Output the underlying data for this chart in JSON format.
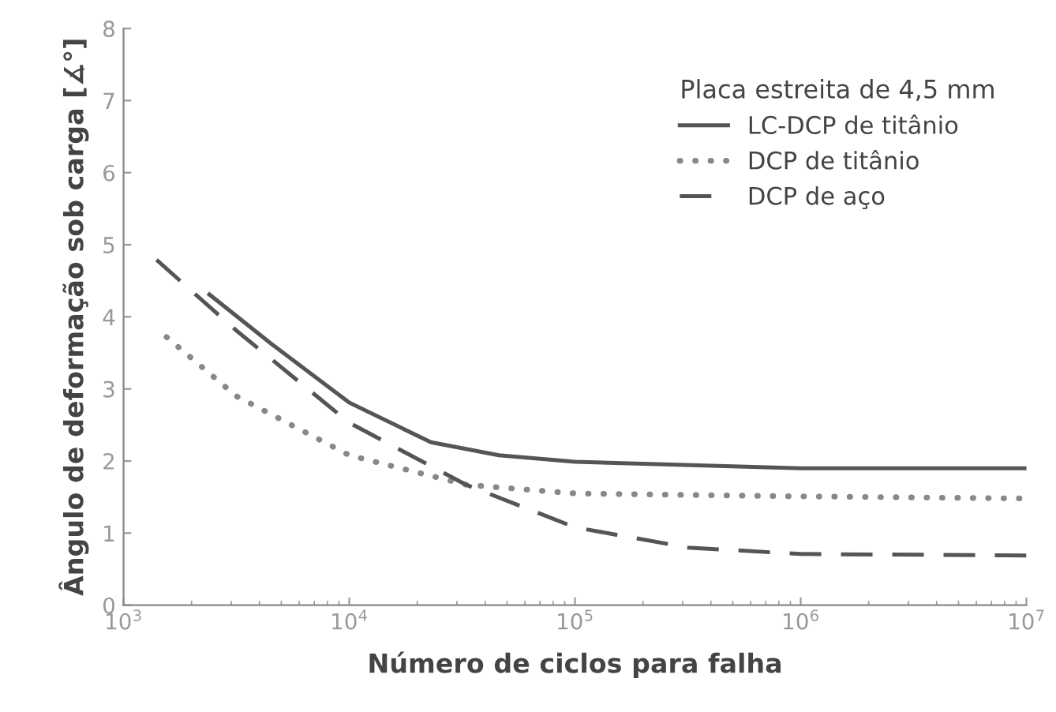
{
  "chart_data": {
    "type": "line",
    "xlabel": "Número de ciclos para falha",
    "ylabel": "Ângulo de deformação sob carga [∡°]",
    "legend_title": "Placa estreita de 4,5 mm",
    "legend": "top right",
    "log": "x",
    "grid": false,
    "xlim": [
      1000,
      10000000
    ],
    "xticks": [
      {
        "value": 1000,
        "label": "10$^{3}$"
      },
      {
        "value": 10000,
        "label": "10$^{4}$"
      },
      {
        "value": 100000,
        "label": "10$^{5}$"
      },
      {
        "value": 1000000,
        "label": "10$^{6}$"
      },
      {
        "value": 10000000,
        "label": "10$^{7}$"
      }
    ],
    "ylim": [
      0,
      8
    ],
    "yticks": [
      0,
      1,
      2,
      3,
      4,
      5,
      6,
      7,
      8
    ],
    "series": [
      {
        "name": "LC-DCP de titânio",
        "color": "#555555",
        "line_style": "solid",
        "x": [
          2400,
          4500,
          10000,
          23000,
          46000,
          100000,
          1000000,
          10000000
        ],
        "values": [
          4.31,
          3.63,
          2.81,
          2.26,
          2.08,
          1.99,
          1.9,
          1.9
        ]
      },
      {
        "name": "DCP de titânio",
        "color": "#888888",
        "line_style": "dotted",
        "x": [
          1550,
          3160,
          10000,
          33000,
          100000,
          1000000,
          10000000
        ],
        "values": [
          3.72,
          2.9,
          2.08,
          1.67,
          1.55,
          1.51,
          1.48
        ]
      },
      {
        "name": "DCP de aço",
        "color": "#555555",
        "line_style": "dashed",
        "x": [
          1400,
          3160,
          10000,
          33000,
          100000,
          316000,
          1000000,
          10000000
        ],
        "values": [
          4.79,
          3.81,
          2.53,
          1.67,
          1.08,
          0.8,
          0.71,
          0.69
        ]
      }
    ]
  }
}
